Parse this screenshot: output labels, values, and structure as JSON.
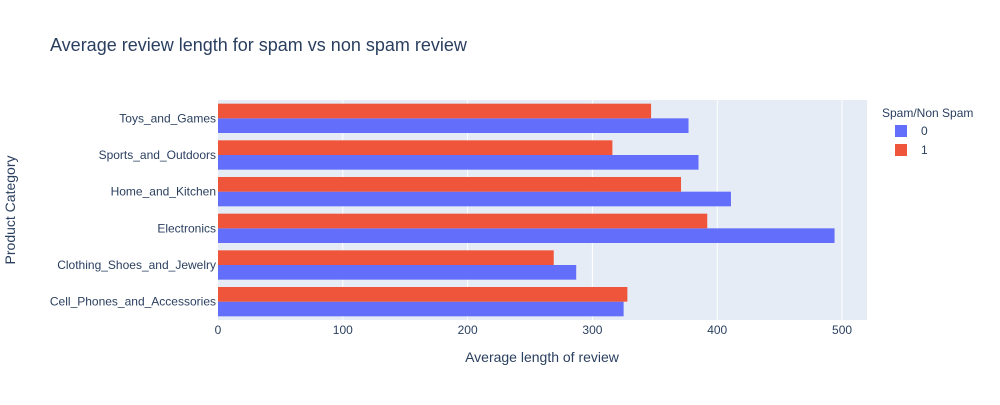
{
  "chart_data": {
    "type": "bar",
    "orientation": "horizontal",
    "barmode": "group",
    "title": "Average review length for spam vs non spam review",
    "xlabel": "Average length of review",
    "ylabel": "Product Category",
    "xlim": [
      0,
      520
    ],
    "xticks": [
      0,
      100,
      200,
      300,
      400,
      500
    ],
    "grid": true,
    "categories": [
      "Cell_Phones_and_Accessories",
      "Clothing_Shoes_and_Jewelry",
      "Electronics",
      "Home_and_Kitchen",
      "Sports_and_Outdoors",
      "Toys_and_Games"
    ],
    "legend": {
      "title": "Spam/Non Spam",
      "position": "right"
    },
    "series": [
      {
        "name": "0",
        "color": "#636efa",
        "values": [
          325,
          287,
          494,
          411,
          385,
          377
        ]
      },
      {
        "name": "1",
        "color": "#ef553b",
        "values": [
          328,
          269,
          392,
          371,
          316,
          347
        ]
      }
    ]
  }
}
